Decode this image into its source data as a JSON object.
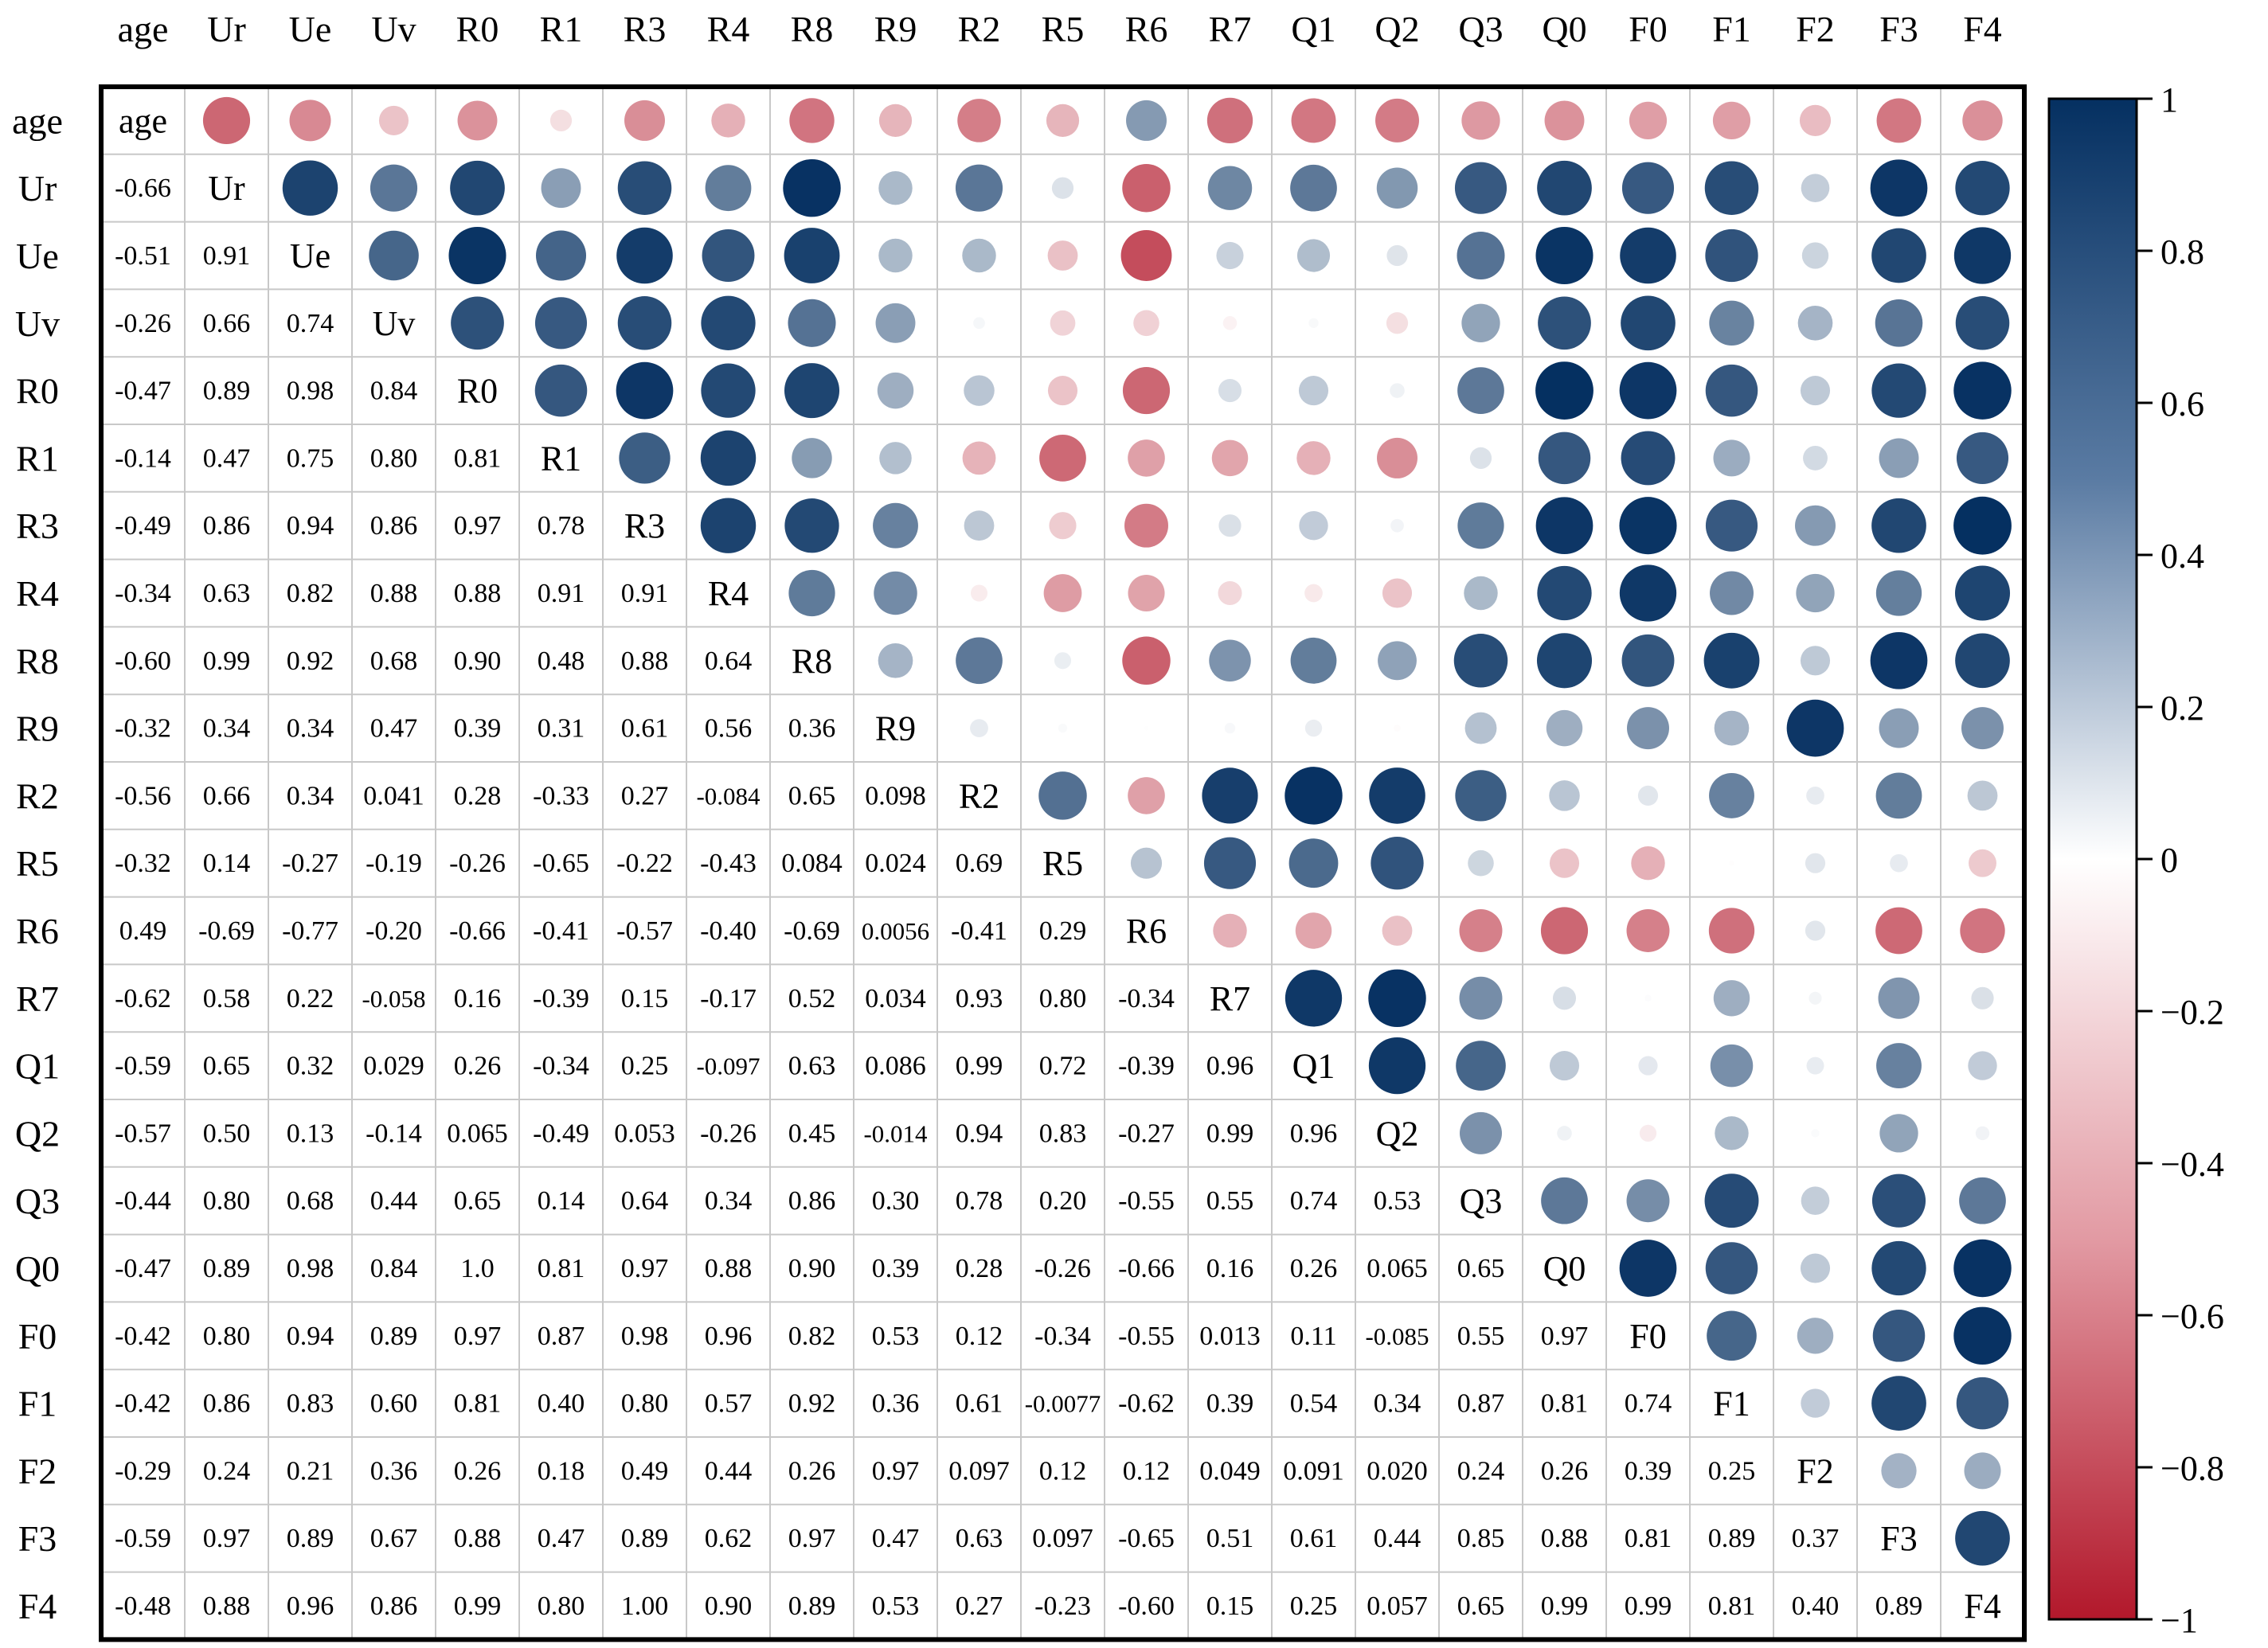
{
  "chart_data": {
    "type": "heatmap",
    "subtype": "correlation-matrix",
    "lower_triangle": "numbers",
    "upper_triangle": "circles",
    "diagonal": "variable-name",
    "variables": [
      "age",
      "Ur",
      "Ue",
      "Uv",
      "R0",
      "R1",
      "R3",
      "R4",
      "R8",
      "R9",
      "R2",
      "R5",
      "R6",
      "R7",
      "Q1",
      "Q2",
      "Q3",
      "Q0",
      "F0",
      "F1",
      "F2",
      "F3",
      "F4"
    ],
    "value_labels": [
      [
        "age",
        "-0.66",
        "-0.51",
        "-0.26",
        "-0.47",
        "-0.14",
        "-0.49",
        "-0.34",
        "-0.60",
        "-0.32",
        "-0.56",
        "-0.32",
        "0.49",
        "-0.62",
        "-0.59",
        "-0.57",
        "-0.44",
        "-0.47",
        "-0.42",
        "-0.42",
        "-0.29",
        "-0.59",
        "-0.48"
      ],
      [
        "-0.66",
        "Ur",
        "0.91",
        "0.66",
        "0.89",
        "0.47",
        "0.86",
        "0.63",
        "0.99",
        "0.34",
        "0.66",
        "0.14",
        "-0.69",
        "0.58",
        "0.65",
        "0.50",
        "0.80",
        "0.89",
        "0.80",
        "0.86",
        "0.24",
        "0.97",
        "0.88"
      ],
      [
        "-0.51",
        "0.91",
        "Ue",
        "0.74",
        "0.98",
        "0.75",
        "0.94",
        "0.82",
        "0.92",
        "0.34",
        "0.34",
        "-0.27",
        "-0.77",
        "0.22",
        "0.32",
        "0.13",
        "0.68",
        "0.98",
        "0.94",
        "0.83",
        "0.21",
        "0.89",
        "0.96"
      ],
      [
        "-0.26",
        "0.66",
        "0.74",
        "Uv",
        "0.84",
        "0.80",
        "0.86",
        "0.88",
        "0.68",
        "0.47",
        "0.041",
        "-0.19",
        "-0.20",
        "-0.058",
        "0.029",
        "-0.14",
        "0.44",
        "0.84",
        "0.89",
        "0.60",
        "0.36",
        "0.67",
        "0.86"
      ],
      [
        "-0.47",
        "0.89",
        "0.98",
        "0.84",
        "R0",
        "0.81",
        "0.97",
        "0.88",
        "0.90",
        "0.39",
        "0.28",
        "-0.26",
        "-0.66",
        "0.16",
        "0.26",
        "0.065",
        "0.65",
        "1.0",
        "0.97",
        "0.81",
        "0.26",
        "0.88",
        "0.99"
      ],
      [
        "-0.14",
        "0.47",
        "0.75",
        "0.80",
        "0.81",
        "R1",
        "0.78",
        "0.91",
        "0.48",
        "0.31",
        "-0.33",
        "-0.65",
        "-0.41",
        "-0.39",
        "-0.34",
        "-0.49",
        "0.14",
        "0.81",
        "0.87",
        "0.40",
        "0.18",
        "0.47",
        "0.80"
      ],
      [
        "-0.49",
        "0.86",
        "0.94",
        "0.86",
        "0.97",
        "0.78",
        "R3",
        "0.91",
        "0.88",
        "0.61",
        "0.27",
        "-0.22",
        "-0.57",
        "0.15",
        "0.25",
        "0.053",
        "0.64",
        "0.97",
        "0.98",
        "0.80",
        "0.49",
        "0.89",
        "1.00"
      ],
      [
        "-0.34",
        "0.63",
        "0.82",
        "0.88",
        "0.88",
        "0.91",
        "0.91",
        "R4",
        "0.64",
        "0.56",
        "-0.084",
        "-0.43",
        "-0.40",
        "-0.17",
        "-0.097",
        "-0.26",
        "0.34",
        "0.88",
        "0.96",
        "0.57",
        "0.44",
        "0.62",
        "0.90"
      ],
      [
        "-0.60",
        "0.99",
        "0.92",
        "0.68",
        "0.90",
        "0.48",
        "0.88",
        "0.64",
        "R8",
        "0.36",
        "0.65",
        "0.084",
        "-0.69",
        "0.52",
        "0.63",
        "0.45",
        "0.86",
        "0.90",
        "0.82",
        "0.92",
        "0.26",
        "0.97",
        "0.89"
      ],
      [
        "-0.32",
        "0.34",
        "0.34",
        "0.47",
        "0.39",
        "0.31",
        "0.61",
        "0.56",
        "0.36",
        "R9",
        "0.098",
        "0.024",
        "0.0056",
        "0.034",
        "0.086",
        "-0.014",
        "0.30",
        "0.39",
        "0.53",
        "0.36",
        "0.97",
        "0.47",
        "0.53"
      ],
      [
        "-0.56",
        "0.66",
        "0.34",
        "0.041",
        "0.28",
        "-0.33",
        "0.27",
        "-0.084",
        "0.65",
        "0.098",
        "R2",
        "0.69",
        "-0.41",
        "0.93",
        "0.99",
        "0.94",
        "0.78",
        "0.28",
        "0.12",
        "0.61",
        "0.097",
        "0.63",
        "0.27"
      ],
      [
        "-0.32",
        "0.14",
        "-0.27",
        "-0.19",
        "-0.26",
        "-0.65",
        "-0.22",
        "-0.43",
        "0.084",
        "0.024",
        "0.69",
        "R5",
        "0.29",
        "0.80",
        "0.72",
        "0.83",
        "0.20",
        "-0.26",
        "-0.34",
        "-0.0077",
        "0.12",
        "0.097",
        "-0.23"
      ],
      [
        "0.49",
        "-0.69",
        "-0.77",
        "-0.20",
        "-0.66",
        "-0.41",
        "-0.57",
        "-0.40",
        "-0.69",
        "0.0056",
        "-0.41",
        "0.29",
        "R6",
        "-0.34",
        "-0.39",
        "-0.27",
        "-0.55",
        "-0.66",
        "-0.55",
        "-0.62",
        "0.12",
        "-0.65",
        "-0.60"
      ],
      [
        "-0.62",
        "0.58",
        "0.22",
        "-0.058",
        "0.16",
        "-0.39",
        "0.15",
        "-0.17",
        "0.52",
        "0.034",
        "0.93",
        "0.80",
        "-0.34",
        "R7",
        "0.96",
        "0.99",
        "0.55",
        "0.16",
        "0.013",
        "0.39",
        "0.049",
        "0.51",
        "0.15"
      ],
      [
        "-0.59",
        "0.65",
        "0.32",
        "0.029",
        "0.26",
        "-0.34",
        "0.25",
        "-0.097",
        "0.63",
        "0.086",
        "0.99",
        "0.72",
        "-0.39",
        "0.96",
        "Q1",
        "0.96",
        "0.74",
        "0.26",
        "0.11",
        "0.54",
        "0.091",
        "0.61",
        "0.25"
      ],
      [
        "-0.57",
        "0.50",
        "0.13",
        "-0.14",
        "0.065",
        "-0.49",
        "0.053",
        "-0.26",
        "0.45",
        "-0.014",
        "0.94",
        "0.83",
        "-0.27",
        "0.99",
        "0.96",
        "Q2",
        "0.53",
        "0.065",
        "-0.085",
        "0.34",
        "0.020",
        "0.44",
        "0.057"
      ],
      [
        "-0.44",
        "0.80",
        "0.68",
        "0.44",
        "0.65",
        "0.14",
        "0.64",
        "0.34",
        "0.86",
        "0.30",
        "0.78",
        "0.20",
        "-0.55",
        "0.55",
        "0.74",
        "0.53",
        "Q3",
        "0.65",
        "0.55",
        "0.87",
        "0.24",
        "0.85",
        "0.65"
      ],
      [
        "-0.47",
        "0.89",
        "0.98",
        "0.84",
        "1.0",
        "0.81",
        "0.97",
        "0.88",
        "0.90",
        "0.39",
        "0.28",
        "-0.26",
        "-0.66",
        "0.16",
        "0.26",
        "0.065",
        "0.65",
        "Q0",
        "0.97",
        "0.81",
        "0.26",
        "0.88",
        "0.99"
      ],
      [
        "-0.42",
        "0.80",
        "0.94",
        "0.89",
        "0.97",
        "0.87",
        "0.98",
        "0.96",
        "0.82",
        "0.53",
        "0.12",
        "-0.34",
        "-0.55",
        "0.013",
        "0.11",
        "-0.085",
        "0.55",
        "0.97",
        "F0",
        "0.74",
        "0.39",
        "0.81",
        "0.99"
      ],
      [
        "-0.42",
        "0.86",
        "0.83",
        "0.60",
        "0.81",
        "0.40",
        "0.80",
        "0.57",
        "0.92",
        "0.36",
        "0.61",
        "-0.0077",
        "-0.62",
        "0.39",
        "0.54",
        "0.34",
        "0.87",
        "0.81",
        "0.74",
        "F1",
        "0.25",
        "0.89",
        "0.81"
      ],
      [
        "-0.29",
        "0.24",
        "0.21",
        "0.36",
        "0.26",
        "0.18",
        "0.49",
        "0.44",
        "0.26",
        "0.97",
        "0.097",
        "0.12",
        "0.12",
        "0.049",
        "0.091",
        "0.020",
        "0.24",
        "0.26",
        "0.39",
        "0.25",
        "F2",
        "0.37",
        "0.40"
      ],
      [
        "-0.59",
        "0.97",
        "0.89",
        "0.67",
        "0.88",
        "0.47",
        "0.89",
        "0.62",
        "0.97",
        "0.47",
        "0.63",
        "0.097",
        "-0.65",
        "0.51",
        "0.61",
        "0.44",
        "0.85",
        "0.88",
        "0.81",
        "0.89",
        "0.37",
        "F3",
        "0.89"
      ],
      [
        "-0.48",
        "0.88",
        "0.96",
        "0.86",
        "0.99",
        "0.80",
        "1.00",
        "0.90",
        "0.89",
        "0.53",
        "0.27",
        "-0.23",
        "-0.60",
        "0.15",
        "0.25",
        "0.057",
        "0.65",
        "0.99",
        "0.99",
        "0.81",
        "0.40",
        "0.89",
        "F4"
      ]
    ],
    "colorbar": {
      "range": [
        -1,
        1
      ],
      "ticks": [
        "1",
        "0.8",
        "0.6",
        "0.4",
        "0.2",
        "0",
        "−0.2",
        "−0.4",
        "−0.6",
        "−0.8",
        "−1"
      ],
      "colors": {
        "negative": "#b2182b",
        "zero": "#ffffff",
        "positive": "#053061"
      }
    },
    "grid": true,
    "legend": "right"
  }
}
